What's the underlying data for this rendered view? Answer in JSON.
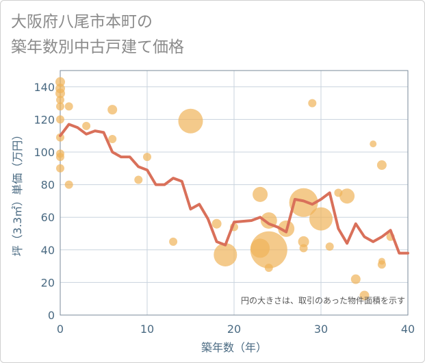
{
  "title_lines": [
    "大阪府八尾市本町の",
    "築年数別中古戸建て価格"
  ],
  "note": "円の大きさは、取引のあった物件面積を示す",
  "colors": {
    "line": "#d9705a",
    "bubble": "#f0b45a",
    "axis_text": "#4a6a82",
    "grid": "#c8d3de",
    "plot_border": "#7a8a99"
  },
  "chart_data": {
    "type": "scatter",
    "xlabel": "築年数（年）",
    "ylabel": "坪（3.3㎡）単価（万円）",
    "xlim": [
      0,
      40
    ],
    "ylim": [
      0,
      150
    ],
    "x_ticks": [
      0,
      10,
      20,
      30,
      40
    ],
    "y_ticks": [
      0,
      20,
      40,
      60,
      80,
      100,
      120,
      140
    ],
    "grid": true,
    "series": [
      {
        "kind": "line",
        "points": [
          [
            0,
            110
          ],
          [
            1,
            117
          ],
          [
            2,
            115
          ],
          [
            3,
            111
          ],
          [
            4,
            113
          ],
          [
            5,
            112
          ],
          [
            6,
            100
          ],
          [
            7,
            97
          ],
          [
            8,
            97
          ],
          [
            9,
            91
          ],
          [
            10,
            89
          ],
          [
            11,
            80
          ],
          [
            12,
            80
          ],
          [
            13,
            84
          ],
          [
            14,
            82
          ],
          [
            15,
            65
          ],
          [
            16,
            68
          ],
          [
            17,
            59
          ],
          [
            18,
            45
          ],
          [
            19,
            43
          ],
          [
            20,
            57
          ],
          [
            21,
            57.5
          ],
          [
            22,
            58
          ],
          [
            23,
            60
          ],
          [
            24,
            56
          ],
          [
            25,
            54
          ],
          [
            26,
            51
          ],
          [
            27,
            71
          ],
          [
            28,
            70
          ],
          [
            29,
            68
          ],
          [
            30,
            71
          ],
          [
            31,
            75
          ],
          [
            32,
            53
          ],
          [
            33,
            44
          ],
          [
            34,
            56
          ],
          [
            35,
            48
          ],
          [
            36,
            45
          ],
          [
            37,
            48
          ],
          [
            38,
            52
          ],
          [
            39,
            38
          ],
          [
            40,
            38
          ]
        ]
      },
      {
        "kind": "bubble",
        "points": [
          {
            "x": 0,
            "y": 143,
            "s": 7
          },
          {
            "x": 0,
            "y": 139,
            "s": 7
          },
          {
            "x": 0,
            "y": 136,
            "s": 7
          },
          {
            "x": 0,
            "y": 132,
            "s": 6
          },
          {
            "x": 0,
            "y": 128,
            "s": 6
          },
          {
            "x": 0,
            "y": 120,
            "s": 6
          },
          {
            "x": 0,
            "y": 109,
            "s": 6
          },
          {
            "x": 0,
            "y": 99,
            "s": 6
          },
          {
            "x": 0,
            "y": 97,
            "s": 6
          },
          {
            "x": 0,
            "y": 90,
            "s": 6
          },
          {
            "x": 1,
            "y": 128,
            "s": 6
          },
          {
            "x": 1,
            "y": 80,
            "s": 6
          },
          {
            "x": 3,
            "y": 116,
            "s": 6
          },
          {
            "x": 6,
            "y": 126,
            "s": 7
          },
          {
            "x": 6,
            "y": 108,
            "s": 6
          },
          {
            "x": 9,
            "y": 83,
            "s": 6
          },
          {
            "x": 10,
            "y": 97,
            "s": 6
          },
          {
            "x": 13,
            "y": 45,
            "s": 6
          },
          {
            "x": 15,
            "y": 119,
            "s": 18
          },
          {
            "x": 18,
            "y": 56,
            "s": 7
          },
          {
            "x": 19,
            "y": 37,
            "s": 17
          },
          {
            "x": 20,
            "y": 54,
            "s": 6
          },
          {
            "x": 23,
            "y": 74,
            "s": 11
          },
          {
            "x": 23,
            "y": 41,
            "s": 14
          },
          {
            "x": 24,
            "y": 58,
            "s": 12
          },
          {
            "x": 24,
            "y": 40,
            "s": 27
          },
          {
            "x": 24,
            "y": 29,
            "s": 6
          },
          {
            "x": 26,
            "y": 53,
            "s": 12
          },
          {
            "x": 28,
            "y": 69,
            "s": 21
          },
          {
            "x": 28,
            "y": 45,
            "s": 8
          },
          {
            "x": 28,
            "y": 41,
            "s": 6
          },
          {
            "x": 29,
            "y": 130,
            "s": 6
          },
          {
            "x": 30,
            "y": 59,
            "s": 17
          },
          {
            "x": 31,
            "y": 42,
            "s": 6
          },
          {
            "x": 32,
            "y": 75,
            "s": 6
          },
          {
            "x": 33,
            "y": 73,
            "s": 11
          },
          {
            "x": 34,
            "y": 22,
            "s": 7
          },
          {
            "x": 35,
            "y": 12,
            "s": 7
          },
          {
            "x": 36,
            "y": 105,
            "s": 5
          },
          {
            "x": 37,
            "y": 92,
            "s": 7
          },
          {
            "x": 37,
            "y": 33,
            "s": 5
          },
          {
            "x": 37,
            "y": 31,
            "s": 6
          },
          {
            "x": 38,
            "y": 48,
            "s": 6
          }
        ]
      }
    ]
  }
}
